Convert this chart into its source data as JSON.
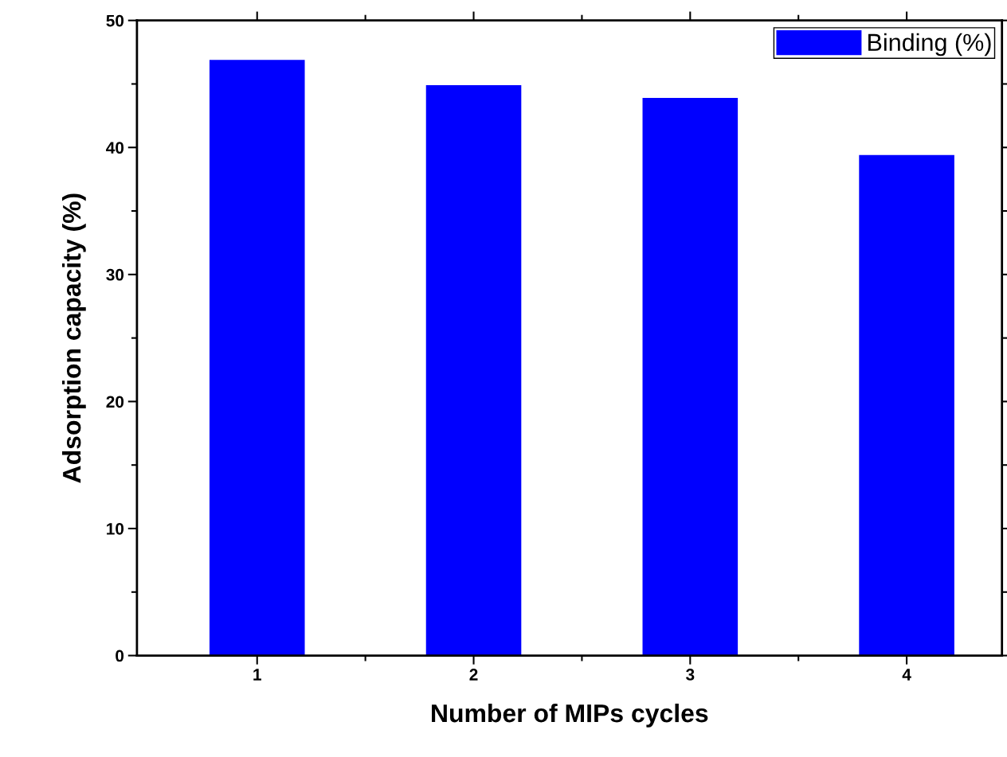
{
  "chart_data": {
    "type": "bar",
    "xlabel": "Number of MIPs cycles",
    "ylabel": "Adsorption capacity (%)",
    "categories": [
      "1",
      "2",
      "3",
      "4"
    ],
    "series": [
      {
        "name": "Binding (%)",
        "color": "#0000ff",
        "values": [
          46.9,
          44.9,
          43.9,
          39.4
        ]
      }
    ],
    "ylim": [
      0,
      50
    ],
    "yticks": [
      0,
      10,
      20,
      30,
      40,
      50
    ],
    "grid": false,
    "legend": "top right",
    "tick_labels": "xy"
  }
}
